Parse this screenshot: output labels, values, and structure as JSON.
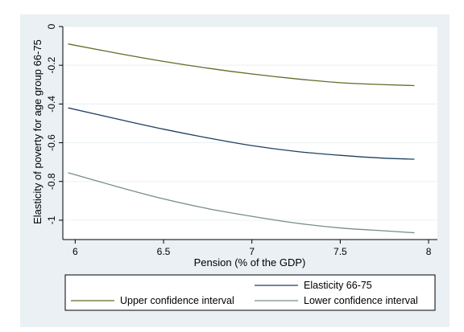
{
  "colors": {
    "outer_background": "#eaf0f3",
    "plot_background": "#ffffff",
    "gridline": "#eaf0f3",
    "axis": "#000000"
  },
  "chart_data": {
    "type": "line",
    "title": "",
    "xlabel": "Pension (% of the GDP)",
    "ylabel": "Elasticity of poverty for age group 66-75",
    "xlim": [
      5.93,
      8.05
    ],
    "ylim": [
      -1.1,
      0
    ],
    "x_ticks": [
      6,
      6.5,
      7,
      7.5,
      8
    ],
    "x_tick_labels": [
      "6",
      "6.5",
      "7",
      "7.5",
      "8"
    ],
    "y_ticks": [
      0,
      -0.2,
      -0.4,
      -0.6,
      -0.8,
      -1
    ],
    "y_tick_labels": [
      "0",
      "-0.2",
      "-0.4",
      "-0.6",
      "-0.8",
      "-1"
    ],
    "grid": true,
    "legend_position": "bottom",
    "series": [
      {
        "name": "Elasticity 66-75",
        "color": "#1f3f60",
        "x": [
          5.96,
          6.25,
          6.5,
          6.75,
          7.0,
          7.25,
          7.5,
          7.75,
          7.92
        ],
        "values": [
          -0.42,
          -0.48,
          -0.53,
          -0.575,
          -0.615,
          -0.645,
          -0.665,
          -0.68,
          -0.685
        ]
      },
      {
        "name": "Upper confidence interval",
        "color": "#5b6e25",
        "x": [
          5.96,
          6.25,
          6.5,
          6.75,
          7.0,
          7.25,
          7.5,
          7.75,
          7.92
        ],
        "values": [
          -0.09,
          -0.14,
          -0.18,
          -0.215,
          -0.245,
          -0.27,
          -0.29,
          -0.3,
          -0.305
        ]
      },
      {
        "name": "Lower confidence interval",
        "color": "#778d8a",
        "x": [
          5.96,
          6.25,
          6.5,
          6.75,
          7.0,
          7.25,
          7.5,
          7.75,
          7.92
        ],
        "values": [
          -0.755,
          -0.83,
          -0.89,
          -0.94,
          -0.98,
          -1.015,
          -1.04,
          -1.055,
          -1.065
        ]
      }
    ]
  }
}
